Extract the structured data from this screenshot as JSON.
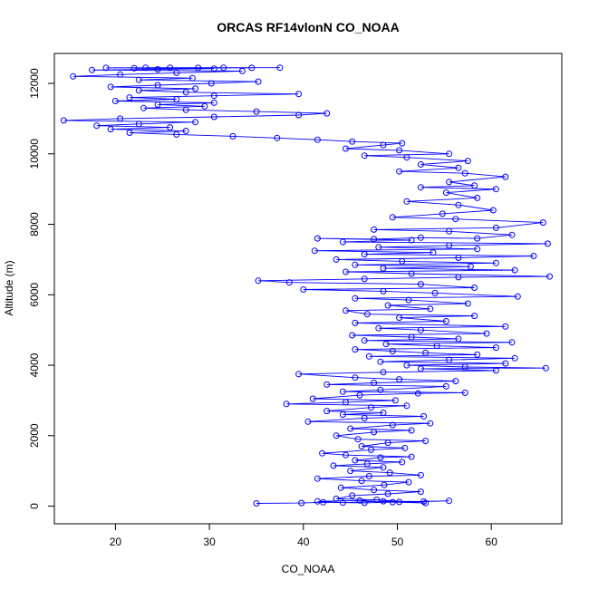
{
  "chart_data": {
    "type": "line",
    "title": "ORCAS RF14vlonN CO_NOAA",
    "xlabel": "CO_NOAA",
    "ylabel": "Altitude (m)",
    "xlim": [
      13.5,
      67.5
    ],
    "ylim": [
      -500,
      12850
    ],
    "xticks": [
      20,
      30,
      40,
      50,
      60
    ],
    "yticks": [
      0,
      2000,
      4000,
      6000,
      8000,
      10000,
      12000
    ],
    "grid": false,
    "legend": "none",
    "markers": "open-circle",
    "color": "#0000ff",
    "series": [
      {
        "points": [
          [
            35,
            80
          ],
          [
            39.8,
            90
          ],
          [
            42.1,
            110
          ],
          [
            46.5,
            95
          ],
          [
            50.2,
            120
          ],
          [
            55.5,
            150
          ],
          [
            52.8,
            130
          ],
          [
            48.5,
            140
          ],
          [
            44.2,
            100
          ],
          [
            41.5,
            135
          ],
          [
            46,
            160
          ],
          [
            49.5,
            115
          ],
          [
            53,
            90
          ],
          [
            47.8,
            180
          ],
          [
            43.5,
            210
          ],
          [
            45.2,
            300
          ],
          [
            49,
            350
          ],
          [
            52.5,
            410
          ],
          [
            47.5,
            460
          ],
          [
            44,
            520
          ],
          [
            48.6,
            600
          ],
          [
            51.2,
            680
          ],
          [
            46.2,
            720
          ],
          [
            41.5,
            780
          ],
          [
            47,
            850
          ],
          [
            52.5,
            880
          ],
          [
            49.2,
            950
          ],
          [
            45,
            1000
          ],
          [
            48.5,
            1100
          ],
          [
            43.2,
            1150
          ],
          [
            46.8,
            1200
          ],
          [
            50.5,
            1250
          ],
          [
            45.5,
            1300
          ],
          [
            48.2,
            1380
          ],
          [
            51.5,
            1400
          ],
          [
            44.5,
            1450
          ],
          [
            42,
            1500
          ],
          [
            47.2,
            1600
          ],
          [
            50.8,
            1650
          ],
          [
            46.2,
            1700
          ],
          [
            49,
            1800
          ],
          [
            53,
            1850
          ],
          [
            45.8,
            1900
          ],
          [
            43.5,
            2000
          ],
          [
            47.5,
            2100
          ],
          [
            51.5,
            2150
          ],
          [
            45,
            2200
          ],
          [
            49.5,
            2300
          ],
          [
            53.5,
            2350
          ],
          [
            40.5,
            2400
          ],
          [
            46.5,
            2500
          ],
          [
            52.8,
            2550
          ],
          [
            44.2,
            2600
          ],
          [
            48.5,
            2650
          ],
          [
            42.5,
            2700
          ],
          [
            47.2,
            2800
          ],
          [
            51,
            2850
          ],
          [
            38.2,
            2900
          ],
          [
            44.5,
            2950
          ],
          [
            49.8,
            3000
          ],
          [
            41,
            3050
          ],
          [
            46,
            3150
          ],
          [
            52.2,
            3200
          ],
          [
            57.2,
            3220
          ],
          [
            44.2,
            3250
          ],
          [
            48.2,
            3300
          ],
          [
            55.2,
            3400
          ],
          [
            42.5,
            3450
          ],
          [
            47.5,
            3500
          ],
          [
            56.2,
            3550
          ],
          [
            50.2,
            3600
          ],
          [
            45.5,
            3650
          ],
          [
            39.5,
            3750
          ],
          [
            48.5,
            3800
          ],
          [
            60.5,
            3850
          ],
          [
            52.5,
            3900
          ],
          [
            65.8,
            3920
          ],
          [
            57.2,
            3950
          ],
          [
            51,
            4000
          ],
          [
            61.5,
            4050
          ],
          [
            48.2,
            4100
          ],
          [
            55.5,
            4150
          ],
          [
            62.5,
            4200
          ],
          [
            47,
            4250
          ],
          [
            58.5,
            4300
          ],
          [
            53,
            4350
          ],
          [
            49.5,
            4400
          ],
          [
            45.5,
            4450
          ],
          [
            60.5,
            4500
          ],
          [
            54.2,
            4550
          ],
          [
            48.8,
            4600
          ],
          [
            62.2,
            4650
          ],
          [
            46.5,
            4700
          ],
          [
            56.5,
            4750
          ],
          [
            51.5,
            4800
          ],
          [
            45.2,
            4850
          ],
          [
            59.5,
            4900
          ],
          [
            52.5,
            5000
          ],
          [
            48,
            5050
          ],
          [
            61.5,
            5100
          ],
          [
            45.5,
            5200
          ],
          [
            55.2,
            5250
          ],
          [
            50.2,
            5350
          ],
          [
            58.2,
            5400
          ],
          [
            46.8,
            5450
          ],
          [
            44.5,
            5550
          ],
          [
            53.5,
            5600
          ],
          [
            49,
            5700
          ],
          [
            57.5,
            5750
          ],
          [
            51.2,
            5850
          ],
          [
            45.5,
            5900
          ],
          [
            62.8,
            5950
          ],
          [
            54,
            6050
          ],
          [
            48.5,
            6100
          ],
          [
            40,
            6150
          ],
          [
            58.2,
            6200
          ],
          [
            52.5,
            6300
          ],
          [
            38.5,
            6350
          ],
          [
            35.2,
            6400
          ],
          [
            46.5,
            6450
          ],
          [
            56.5,
            6500
          ],
          [
            66.2,
            6520
          ],
          [
            51.5,
            6600
          ],
          [
            44.5,
            6650
          ],
          [
            62.5,
            6700
          ],
          [
            48.5,
            6750
          ],
          [
            57.8,
            6800
          ],
          [
            45.5,
            6850
          ],
          [
            60.5,
            6900
          ],
          [
            50.5,
            6950
          ],
          [
            43.5,
            7000
          ],
          [
            56.5,
            7050
          ],
          [
            64.5,
            7100
          ],
          [
            46.5,
            7150
          ],
          [
            53.8,
            7200
          ],
          [
            41.2,
            7250
          ],
          [
            58.5,
            7300
          ],
          [
            48,
            7350
          ],
          [
            55.5,
            7400
          ],
          [
            66,
            7450
          ],
          [
            44.2,
            7500
          ],
          [
            51.5,
            7550
          ],
          [
            41.5,
            7600
          ],
          [
            47.5,
            7580
          ],
          [
            52.5,
            7620
          ],
          [
            58.5,
            7600
          ],
          [
            62.2,
            7700
          ],
          [
            55.5,
            7800
          ],
          [
            47.5,
            7850
          ],
          [
            60.5,
            7900
          ],
          [
            65.5,
            8050
          ],
          [
            56.2,
            8150
          ],
          [
            49.5,
            8200
          ],
          [
            54.8,
            8300
          ],
          [
            60.2,
            8400
          ],
          [
            56.5,
            8550
          ],
          [
            51,
            8650
          ],
          [
            58.5,
            8750
          ],
          [
            55.2,
            8900
          ],
          [
            60.5,
            9000
          ],
          [
            52.5,
            9050
          ],
          [
            58.2,
            9100
          ],
          [
            55.5,
            9200
          ],
          [
            61.5,
            9350
          ],
          [
            57.2,
            9450
          ],
          [
            50.2,
            9500
          ],
          [
            56.5,
            9600
          ],
          [
            52.5,
            9700
          ],
          [
            57.5,
            9800
          ],
          [
            51,
            9900
          ],
          [
            46.5,
            9950
          ],
          [
            55.5,
            10000
          ],
          [
            50.2,
            10100
          ],
          [
            44.5,
            10150
          ],
          [
            48.5,
            10250
          ],
          [
            50.5,
            10300
          ],
          [
            45.2,
            10350
          ],
          [
            41.5,
            10400
          ],
          [
            37.2,
            10450
          ],
          [
            32.5,
            10500
          ],
          [
            26.5,
            10550
          ],
          [
            21.5,
            10600
          ],
          [
            27.5,
            10650
          ],
          [
            19.5,
            10700
          ],
          [
            25.8,
            10750
          ],
          [
            18,
            10800
          ],
          [
            22.5,
            10850
          ],
          [
            28.5,
            10900
          ],
          [
            14.5,
            10950
          ],
          [
            20.5,
            11000
          ],
          [
            30.5,
            11050
          ],
          [
            39.5,
            11100
          ],
          [
            42.5,
            11150
          ],
          [
            35,
            11200
          ],
          [
            27.5,
            11250
          ],
          [
            23,
            11300
          ],
          [
            29.5,
            11350
          ],
          [
            24.5,
            11400
          ],
          [
            30.5,
            11450
          ],
          [
            20,
            11500
          ],
          [
            26.5,
            11550
          ],
          [
            21.5,
            11600
          ],
          [
            30.5,
            11650
          ],
          [
            39.5,
            11700
          ],
          [
            27.5,
            11750
          ],
          [
            22.5,
            11800
          ],
          [
            28.5,
            11850
          ],
          [
            19.5,
            11900
          ],
          [
            24.5,
            11950
          ],
          [
            30.2,
            12000
          ],
          [
            35.2,
            12050
          ],
          [
            22.5,
            12100
          ],
          [
            28.2,
            12150
          ],
          [
            15.5,
            12200
          ],
          [
            20.5,
            12250
          ],
          [
            26.5,
            12300
          ],
          [
            33.5,
            12350
          ],
          [
            17.5,
            12380
          ],
          [
            24.5,
            12400
          ],
          [
            30.5,
            12420
          ],
          [
            22,
            12430
          ],
          [
            28.8,
            12440
          ],
          [
            34.5,
            12440
          ],
          [
            19,
            12440
          ],
          [
            25.8,
            12445
          ],
          [
            31.5,
            12445
          ],
          [
            37.5,
            12445
          ],
          [
            23.2,
            12445
          ]
        ]
      }
    ]
  }
}
